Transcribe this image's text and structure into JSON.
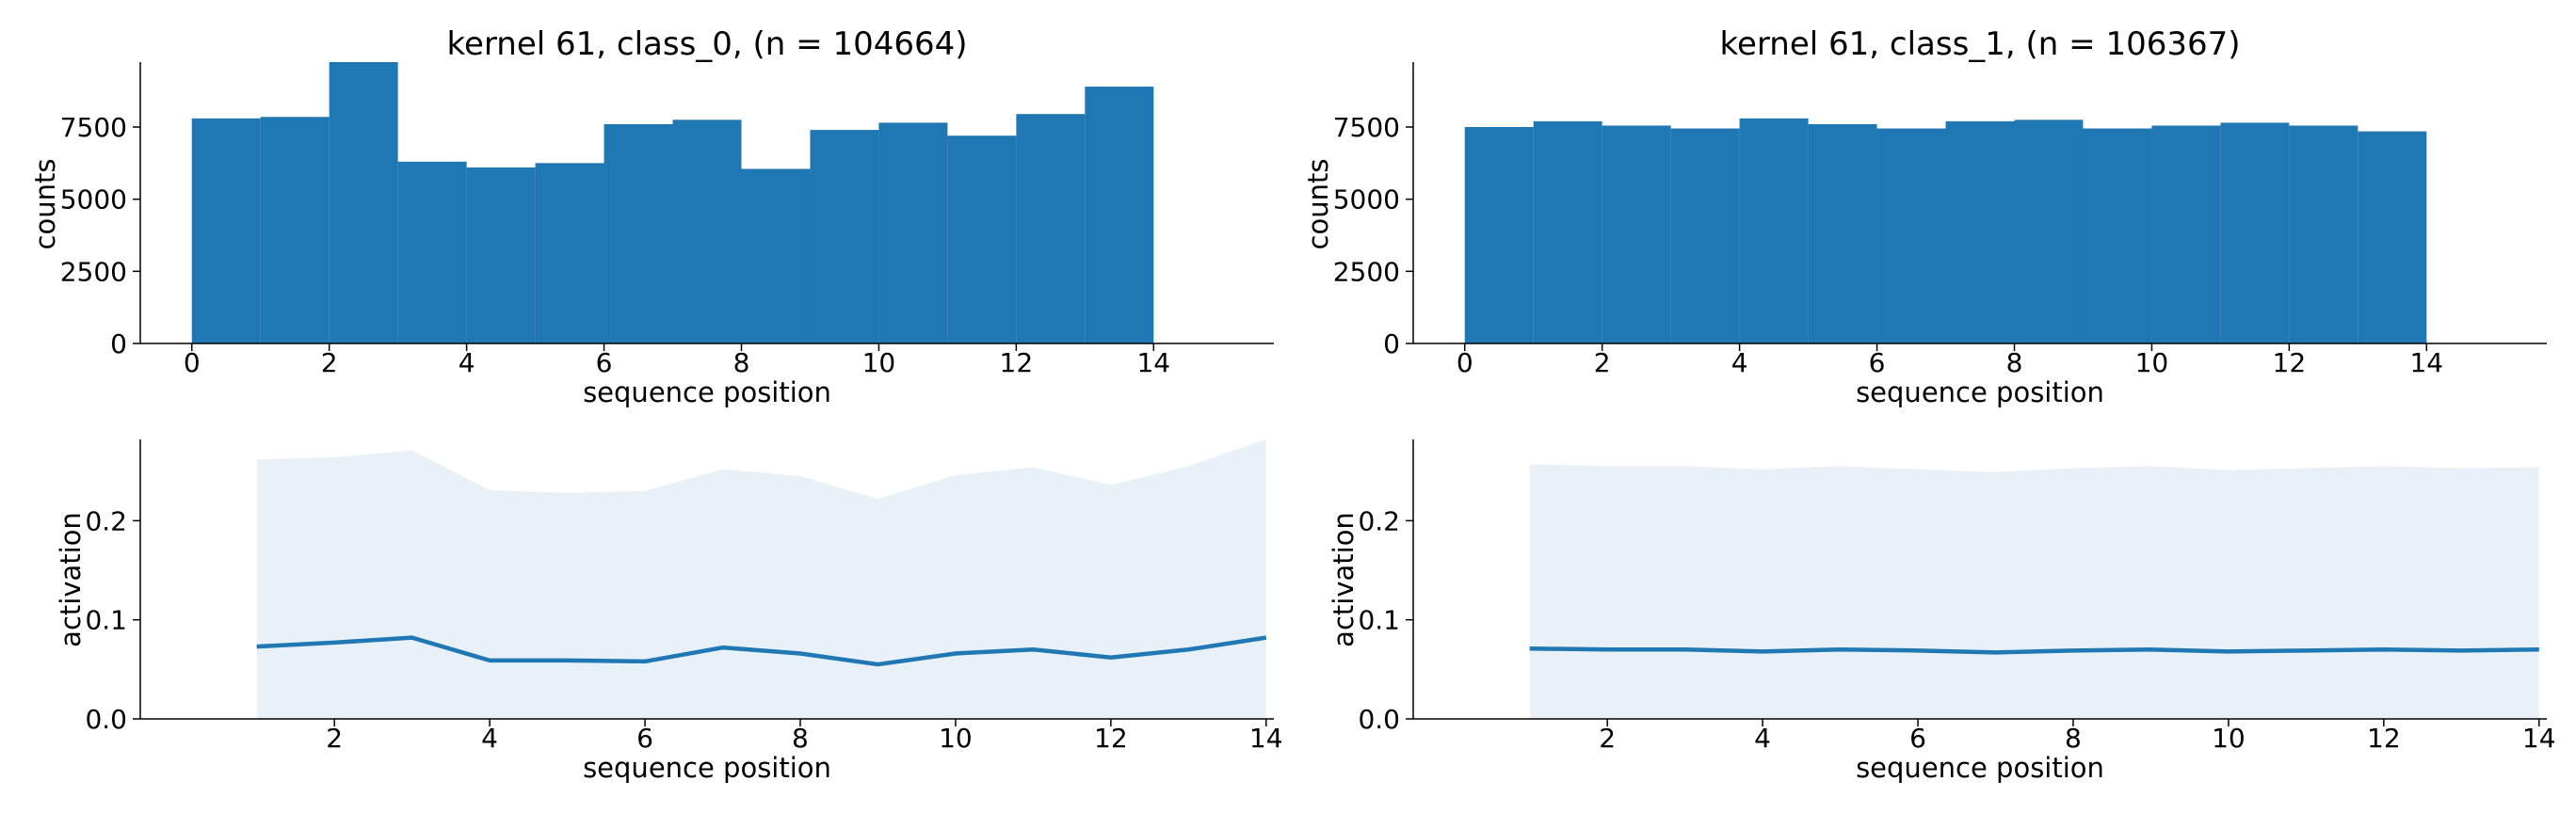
{
  "colors": {
    "bar": "#1f77b4",
    "line": "#1f77b4",
    "band": "#e8f0f8",
    "axis": "#000000"
  },
  "chart_data": [
    {
      "type": "bar",
      "title": "kernel 61, class_0, (n = 104664)",
      "xlabel": "sequence position",
      "ylabel": "counts",
      "bin_edges": [
        0,
        1,
        2,
        3,
        4,
        5,
        6,
        7,
        8,
        9,
        10,
        11,
        12,
        13,
        14
      ],
      "values": [
        7800,
        7850,
        9750,
        6300,
        6100,
        6250,
        7600,
        7750,
        6050,
        7400,
        7650,
        7200,
        7950,
        8900
      ],
      "xlim": [
        -0.75,
        15.75
      ],
      "ylim": [
        0,
        9750
      ],
      "xticks": [
        "0",
        "2",
        "4",
        "6",
        "8",
        "10",
        "12",
        "14"
      ],
      "yticks": [
        "0",
        "2500",
        "5000",
        "7500"
      ]
    },
    {
      "type": "bar",
      "title": "kernel 61, class_1, (n = 106367)",
      "xlabel": "sequence position",
      "ylabel": "counts",
      "bin_edges": [
        0,
        1,
        2,
        3,
        4,
        5,
        6,
        7,
        8,
        9,
        10,
        11,
        12,
        13,
        14
      ],
      "values": [
        7500,
        7700,
        7550,
        7450,
        7800,
        7600,
        7450,
        7700,
        7750,
        7450,
        7550,
        7650,
        7550,
        7350
      ],
      "xlim": [
        -0.75,
        15.75
      ],
      "ylim": [
        0,
        9750
      ],
      "xticks": [
        "0",
        "2",
        "4",
        "6",
        "8",
        "10",
        "12",
        "14"
      ],
      "yticks": [
        "0",
        "2500",
        "5000",
        "7500"
      ]
    },
    {
      "type": "line",
      "xlabel": "sequence position",
      "ylabel": "activation",
      "x": [
        1,
        2,
        3,
        4,
        5,
        6,
        7,
        8,
        9,
        10,
        11,
        12,
        13,
        14
      ],
      "y": [
        0.073,
        0.077,
        0.082,
        0.059,
        0.059,
        0.058,
        0.072,
        0.066,
        0.055,
        0.066,
        0.07,
        0.062,
        0.07,
        0.082
      ],
      "band_upper": [
        0.262,
        0.264,
        0.271,
        0.231,
        0.228,
        0.23,
        0.252,
        0.245,
        0.222,
        0.246,
        0.254,
        0.236,
        0.255,
        0.282
      ],
      "band_lower": [
        0,
        0,
        0,
        0,
        0,
        0,
        0,
        0,
        0,
        0,
        0,
        0,
        0,
        0
      ],
      "xlim": [
        -0.5,
        14.1
      ],
      "ylim": [
        0,
        0.282
      ],
      "xticks": [
        "2",
        "4",
        "6",
        "8",
        "10",
        "12",
        "14"
      ],
      "yticks": [
        "0.0",
        "0.1",
        "0.2"
      ]
    },
    {
      "type": "line",
      "xlabel": "sequence position",
      "ylabel": "activation",
      "x": [
        1,
        2,
        3,
        4,
        5,
        6,
        7,
        8,
        9,
        10,
        11,
        12,
        13,
        14
      ],
      "y": [
        0.071,
        0.07,
        0.07,
        0.068,
        0.07,
        0.069,
        0.067,
        0.069,
        0.07,
        0.068,
        0.069,
        0.07,
        0.069,
        0.07
      ],
      "band_upper": [
        0.257,
        0.255,
        0.255,
        0.252,
        0.255,
        0.252,
        0.249,
        0.253,
        0.255,
        0.251,
        0.253,
        0.255,
        0.253,
        0.254
      ],
      "band_lower": [
        0,
        0,
        0,
        0,
        0,
        0,
        0,
        0,
        0,
        0,
        0,
        0,
        0,
        0
      ],
      "xlim": [
        -0.5,
        14.1
      ],
      "ylim": [
        0,
        0.282
      ],
      "xticks": [
        "2",
        "4",
        "6",
        "8",
        "10",
        "12",
        "14"
      ],
      "yticks": [
        "0.0",
        "0.1",
        "0.2"
      ]
    }
  ]
}
